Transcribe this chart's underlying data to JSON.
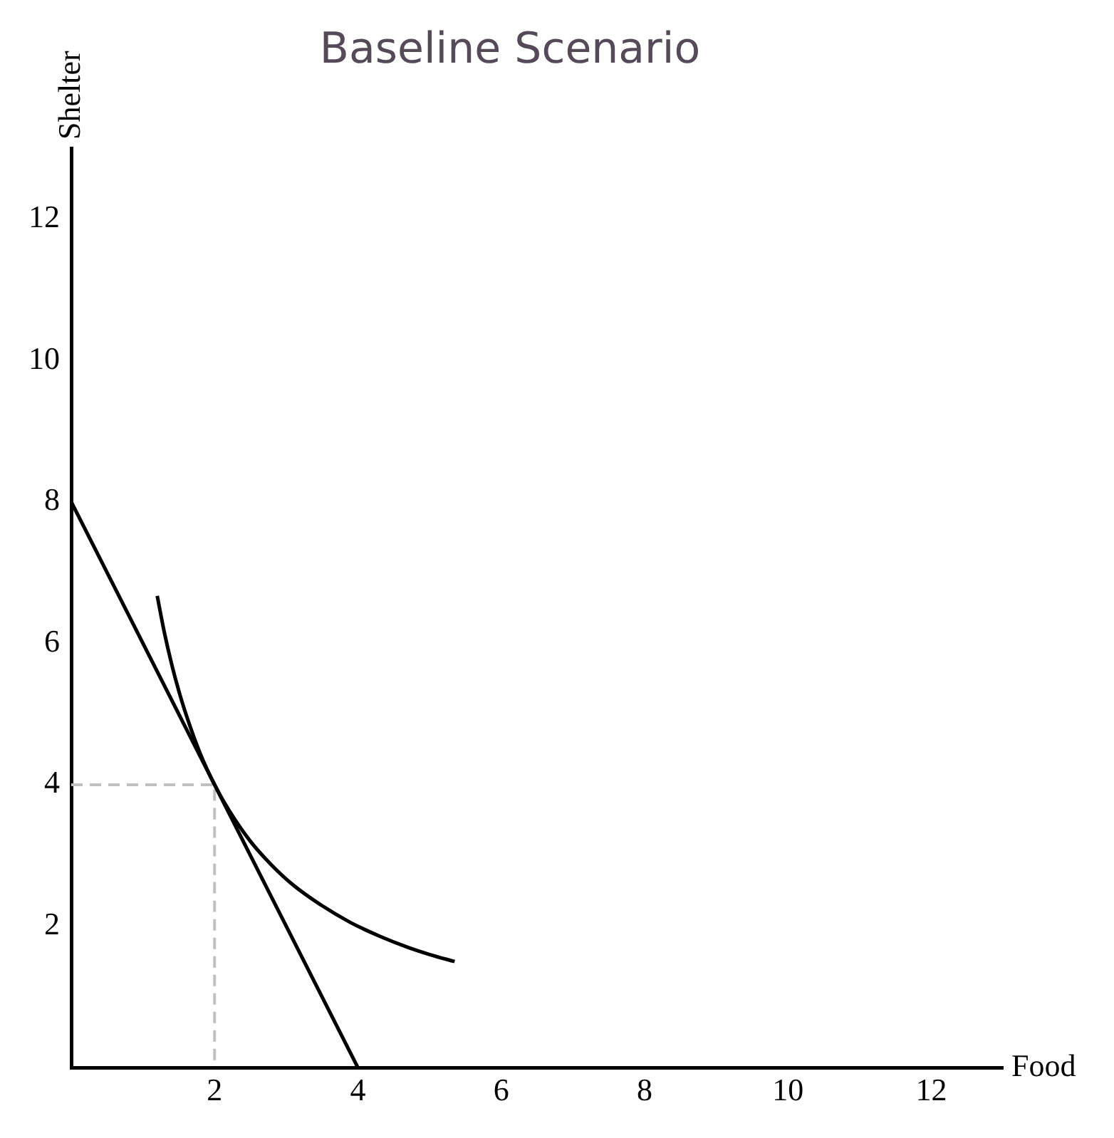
{
  "chart_data": {
    "type": "line",
    "title": "Baseline Scenario",
    "xlabel": "Food",
    "ylabel": "Shelter",
    "xlim": [
      0,
      13
    ],
    "ylim": [
      0,
      13
    ],
    "xticks": [
      2,
      4,
      6,
      8,
      10,
      12
    ],
    "yticks": [
      2,
      4,
      6,
      8,
      10,
      12
    ],
    "grid": false,
    "legend": false,
    "marker": "none",
    "series": [
      {
        "color": "#000000",
        "x": [
          0,
          4
        ],
        "values": [
          8,
          0
        ]
      },
      {
        "color": "#000000",
        "x": [
          1.2,
          1.3,
          1.4,
          1.5,
          1.6,
          1.8,
          2.0,
          2.2,
          2.5,
          2.8,
          3.1,
          3.5,
          3.9,
          4.3,
          4.7,
          5.0,
          5.35
        ],
        "values": [
          6.67,
          6.15,
          5.71,
          5.33,
          5.0,
          4.44,
          4.0,
          3.64,
          3.2,
          2.86,
          2.58,
          2.29,
          2.05,
          1.86,
          1.7,
          1.6,
          1.5
        ]
      },
      {
        "color": "#c0c0c0",
        "line_style": "dashed",
        "x": [
          0,
          2,
          2
        ],
        "values": [
          4,
          4,
          0
        ]
      }
    ]
  }
}
